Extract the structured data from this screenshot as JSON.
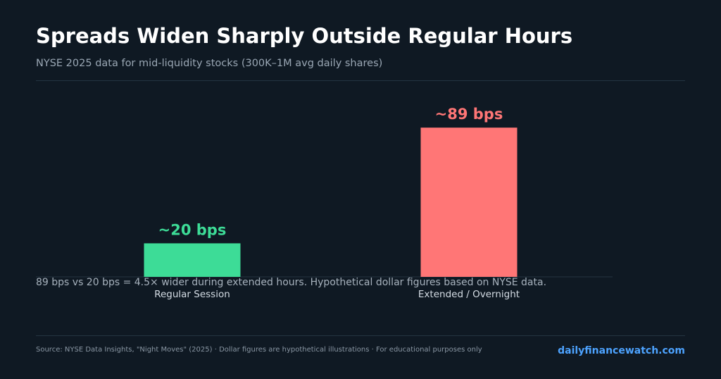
{
  "header": {
    "title": "Spreads Widen Sharply Outside Regular Hours",
    "subtitle": "NYSE 2025 data for mid-liquidity stocks (300K–1M avg daily shares)"
  },
  "chart_data": {
    "type": "bar",
    "categories": [
      "Regular Session",
      "Extended / Overnight"
    ],
    "values": [
      20,
      89
    ],
    "data_labels": [
      "~20 bps",
      "~89 bps"
    ],
    "colors": [
      "#3ddc97",
      "#ff7676"
    ],
    "title": "Spreads Widen Sharply Outside Regular Hours",
    "xlabel": "",
    "ylabel": "",
    "ylim": [
      0,
      100
    ],
    "grid": false
  },
  "note": "89 bps vs 20 bps = 4.5× wider during extended hours. Hypothetical dollar figures based on NYSE data.",
  "footer": {
    "source": "Source: NYSE Data Insights, \"Night Moves\" (2025) · Dollar figures are hypothetical illustrations  ·  For educational purposes only",
    "brand": "dailyfinancewatch.com"
  }
}
